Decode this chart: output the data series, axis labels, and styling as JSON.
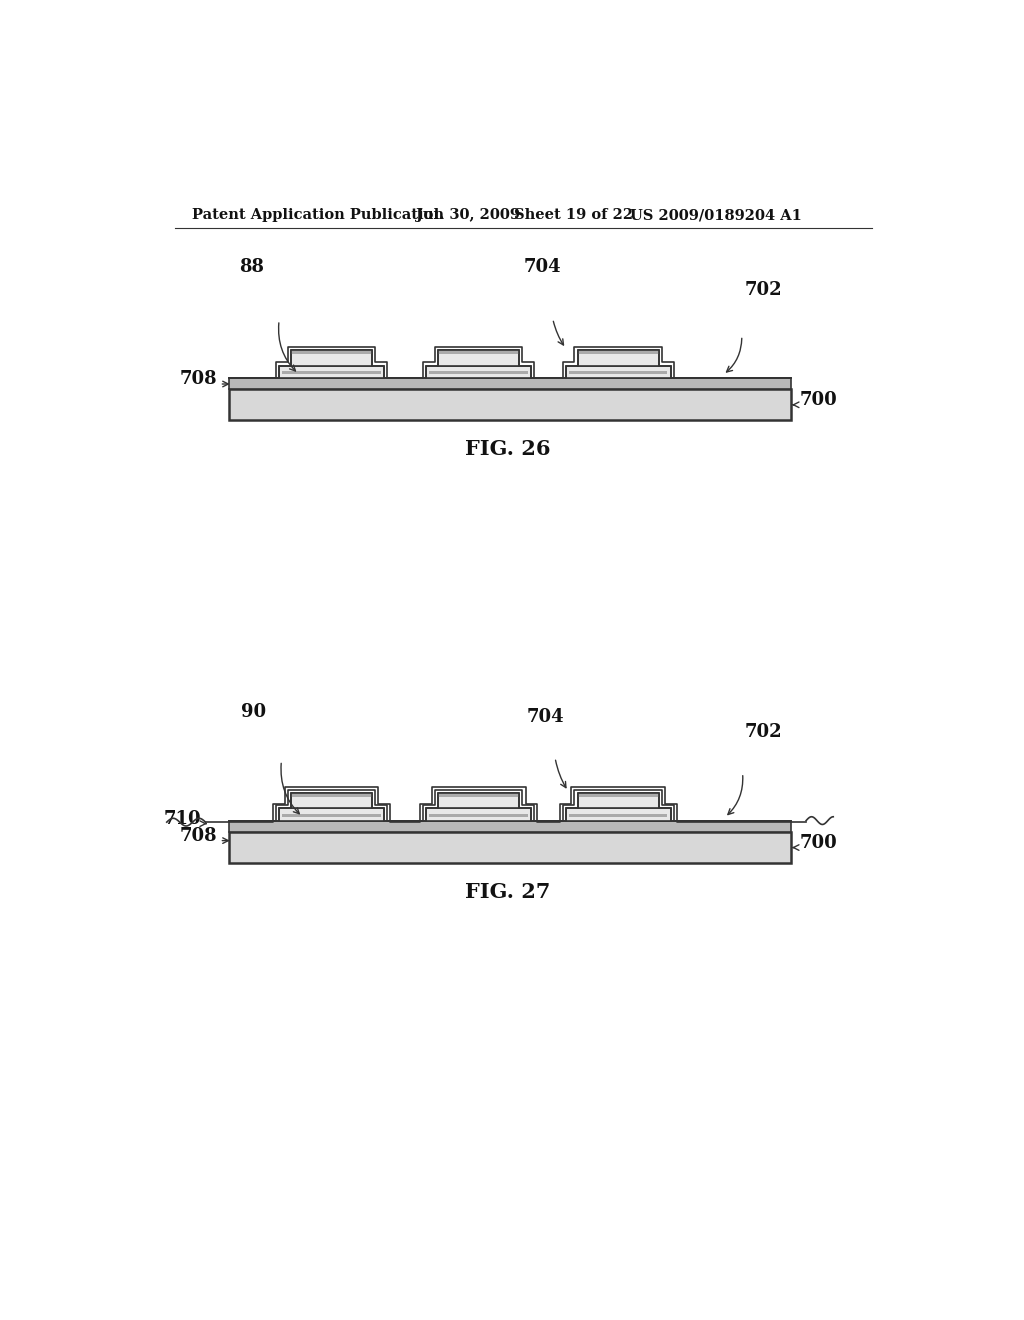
{
  "bg_color": "#ffffff",
  "header_text": "Patent Application Publication",
  "header_date": "Jul. 30, 2009",
  "header_sheet": "Sheet 19 of 22",
  "header_patent": "US 2009/0189204 A1",
  "fig26_label": "FIG. 26",
  "fig27_label": "FIG. 27",
  "label_88": "88",
  "label_704_fig26": "704",
  "label_702_fig26": "702",
  "label_708_fig26": "708",
  "label_700_fig26": "700",
  "label_90": "90",
  "label_710": "710",
  "label_704_fig27": "704",
  "label_702_fig27": "702",
  "label_708_fig27": "708",
  "label_700_fig27": "700"
}
